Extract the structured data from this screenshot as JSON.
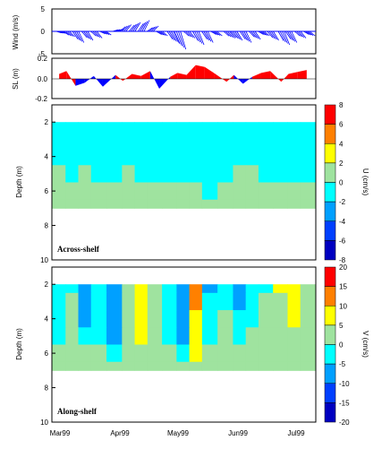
{
  "chart_data": [
    {
      "type": "bar",
      "ylabel": "Wind (m/s)",
      "ylim": [
        -5,
        5
      ],
      "yticks": [
        "5",
        "0",
        "-5"
      ],
      "colors": {
        "stick": "#0000ff"
      },
      "x_dates": [
        "1999-03-01",
        "1999-03-05",
        "1999-03-10",
        "1999-03-15",
        "1999-03-20",
        "1999-03-25",
        "1999-04-01",
        "1999-04-05",
        "1999-04-10",
        "1999-04-15",
        "1999-04-20",
        "1999-04-25",
        "1999-05-01",
        "1999-05-05",
        "1999-05-10",
        "1999-05-15",
        "1999-05-20",
        "1999-05-25",
        "1999-06-01",
        "1999-06-05",
        "1999-06-10",
        "1999-06-15",
        "1999-06-20",
        "1999-06-25",
        "1999-07-01",
        "1999-07-05",
        "1999-07-10",
        "1999-07-15"
      ],
      "values": [
        -0.5,
        -1.2,
        -2.5,
        -2.0,
        -1.5,
        -0.8,
        0.5,
        1.5,
        2.0,
        2.5,
        1.2,
        -1.0,
        -2.5,
        -4.0,
        -1.5,
        -3.0,
        -2.5,
        -1.0,
        -1.5,
        -2.0,
        -2.5,
        -1.8,
        -1.0,
        -2.0,
        -3.0,
        -2.5,
        -1.5,
        -1.0
      ]
    },
    {
      "type": "area",
      "ylabel": "SL (m)",
      "ylim": [
        -0.2,
        0.2
      ],
      "yticks": [
        "0.2",
        "0.0",
        "-0.2"
      ],
      "colors": {
        "positive": "#ff0000",
        "negative": "#0000ff"
      },
      "x_dates": [
        "1999-03-01",
        "1999-03-05",
        "1999-03-10",
        "1999-03-15",
        "1999-03-20",
        "1999-03-25",
        "1999-04-01",
        "1999-04-05",
        "1999-04-10",
        "1999-04-15",
        "1999-04-20",
        "1999-04-25",
        "1999-05-01",
        "1999-05-05",
        "1999-05-10",
        "1999-05-15",
        "1999-05-20",
        "1999-05-25",
        "1999-06-01",
        "1999-06-05",
        "1999-06-10",
        "1999-06-15",
        "1999-06-20",
        "1999-06-25",
        "1999-07-01",
        "1999-07-05",
        "1999-07-10",
        "1999-07-15"
      ],
      "values": [
        0.05,
        0.08,
        -0.07,
        -0.04,
        0.03,
        -0.08,
        0.04,
        -0.02,
        0.05,
        0.03,
        0.08,
        -0.1,
        0.02,
        0.06,
        0.04,
        0.14,
        0.12,
        0.06,
        -0.03,
        0.04,
        -0.05,
        0.02,
        0.06,
        0.08,
        -0.03,
        0.05,
        0.07,
        0.09
      ]
    },
    {
      "type": "heatmap",
      "title": "Across-shelf",
      "ylabel": "Depth (m)",
      "xticklabels": [
        "Mar99",
        "Apr99",
        "May99",
        "Jun99",
        "Jul99"
      ],
      "yticks": [
        "2",
        "4",
        "6",
        "8",
        "10"
      ],
      "ylim": [
        10,
        1
      ],
      "colorbar": {
        "label": "U (cm/s)",
        "ticks": [
          "8",
          "6",
          "4",
          "2",
          "0",
          "-2",
          "-4",
          "-6",
          "-8"
        ],
        "colors": [
          "#ff0000",
          "#ff8000",
          "#ffff00",
          "#9fe39f",
          "#00ffff",
          "#00a0ff",
          "#0040ff",
          "#0000c0"
        ]
      },
      "depths": [
        2,
        3,
        4,
        5,
        6,
        7
      ],
      "x_dates": [
        "1999-03-01",
        "1999-03-08",
        "1999-03-15",
        "1999-03-22",
        "1999-04-01",
        "1999-04-08",
        "1999-04-15",
        "1999-04-22",
        "1999-05-01",
        "1999-05-08",
        "1999-05-15",
        "1999-05-22",
        "1999-06-01",
        "1999-06-08",
        "1999-06-15",
        "1999-06-22",
        "1999-07-01",
        "1999-07-08",
        "1999-07-15"
      ],
      "values": [
        [
          -0.5,
          -0.5,
          -0.5,
          -0.5,
          -0.5,
          -0.5,
          -0.5,
          -0.5,
          -0.5,
          -0.5,
          -0.5,
          -0.5,
          -0.5,
          -0.5,
          -0.5,
          -0.5,
          -0.5,
          -0.5,
          -0.5
        ],
        [
          -0.5,
          -0.5,
          -0.5,
          -0.5,
          -0.5,
          -0.5,
          -0.5,
          -0.5,
          -0.5,
          -0.5,
          -0.5,
          -0.5,
          -0.5,
          -0.5,
          -0.5,
          -0.5,
          -0.5,
          -0.5,
          -0.5
        ],
        [
          -0.5,
          -0.5,
          -0.5,
          -0.5,
          -0.5,
          -0.5,
          -0.5,
          -0.5,
          -0.5,
          -0.5,
          -0.5,
          -0.5,
          -0.5,
          -0.5,
          -0.5,
          -0.5,
          -0.5,
          -0.5,
          -0.5
        ],
        [
          0.5,
          -0.5,
          0.5,
          -0.5,
          -0.5,
          0.5,
          -0.5,
          -0.5,
          -0.5,
          -0.5,
          -0.5,
          -0.5,
          -0.5,
          0.5,
          0.5,
          -0.5,
          -0.5,
          -0.5,
          -0.5
        ],
        [
          0.5,
          0.5,
          0.5,
          0.5,
          0.5,
          0.5,
          0.5,
          0.5,
          0.5,
          0.5,
          0.5,
          -0.5,
          0.5,
          0.5,
          0.5,
          0.5,
          0.5,
          0.5,
          0.5
        ],
        [
          0.5,
          0.5,
          0.5,
          0.5,
          0.5,
          0.5,
          0.5,
          0.5,
          0.5,
          0.5,
          0.5,
          0.5,
          0.5,
          0.5,
          0.5,
          0.5,
          0.5,
          0.5,
          0.5
        ]
      ]
    },
    {
      "type": "heatmap",
      "title": "Along-shelf",
      "ylabel": "Depth (m)",
      "xticklabels": [
        "Mar99",
        "Apr99",
        "May99",
        "Jun99",
        "Jul99"
      ],
      "yticks": [
        "2",
        "4",
        "6",
        "8",
        "10"
      ],
      "ylim": [
        10,
        1
      ],
      "colorbar": {
        "label": "V (cm/s)",
        "ticks": [
          "20",
          "15",
          "10",
          "5",
          "0",
          "-5",
          "-10",
          "-15",
          "-20"
        ],
        "colors": [
          "#ff0000",
          "#ff8000",
          "#ffff00",
          "#9fe39f",
          "#00ffff",
          "#00a0ff",
          "#0040ff",
          "#0000c0"
        ]
      },
      "depths": [
        2,
        3,
        4,
        5,
        6,
        7
      ],
      "x_dates": [
        "1999-03-01",
        "1999-03-08",
        "1999-03-15",
        "1999-03-22",
        "1999-04-01",
        "1999-04-08",
        "1999-04-15",
        "1999-04-22",
        "1999-05-01",
        "1999-05-08",
        "1999-05-15",
        "1999-05-22",
        "1999-06-01",
        "1999-06-08",
        "1999-06-15",
        "1999-06-22",
        "1999-07-01",
        "1999-07-08",
        "1999-07-15"
      ],
      "values": [
        [
          -2,
          -2,
          -7,
          -2,
          -7,
          2,
          7,
          2,
          -2,
          -7,
          12,
          -7,
          -2,
          -7,
          -2,
          -2,
          7,
          7,
          2
        ],
        [
          -2,
          2,
          -7,
          -2,
          -7,
          2,
          7,
          2,
          -2,
          -7,
          12,
          -2,
          -2,
          -7,
          -2,
          2,
          2,
          7,
          2
        ],
        [
          -2,
          2,
          -7,
          -2,
          -7,
          2,
          7,
          2,
          -2,
          -7,
          7,
          -2,
          2,
          -2,
          -2,
          2,
          2,
          7,
          2
        ],
        [
          -2,
          2,
          -2,
          -2,
          -7,
          2,
          7,
          2,
          -2,
          -7,
          7,
          -2,
          2,
          -2,
          2,
          2,
          2,
          2,
          2
        ],
        [
          2,
          2,
          2,
          2,
          -2,
          2,
          2,
          2,
          2,
          -2,
          7,
          2,
          2,
          2,
          2,
          2,
          2,
          2,
          2
        ],
        [
          2,
          2,
          2,
          2,
          2,
          2,
          2,
          2,
          2,
          2,
          2,
          2,
          2,
          2,
          2,
          2,
          2,
          2,
          2
        ]
      ]
    }
  ]
}
